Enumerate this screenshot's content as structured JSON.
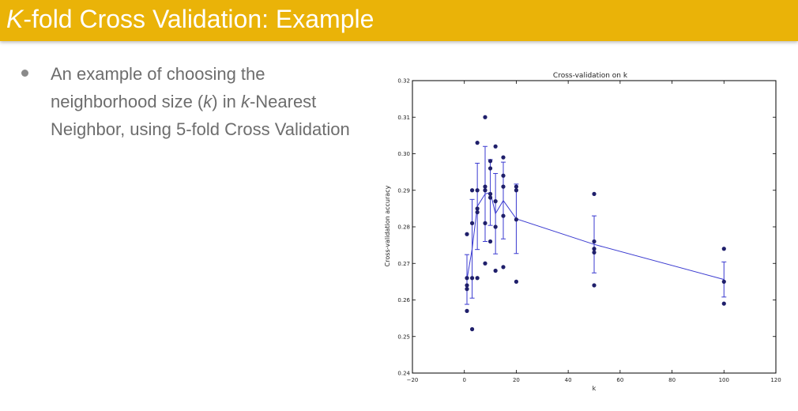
{
  "slide": {
    "title_k": "K",
    "title_rest": "-fold Cross Validation: Example",
    "bullet": {
      "p1": "An example of choosing the neighborhood size (",
      "p2": "k",
      "p3": ") in ",
      "p4": "k",
      "p5": "-Nearest Neighbor, using 5-fold Cross Validation"
    }
  },
  "chart_data": {
    "type": "scatter",
    "title": "Cross-validation on k",
    "xlabel": "k",
    "ylabel": "Cross-validation accuracy",
    "xlim": [
      -20,
      120
    ],
    "ylim": [
      0.24,
      0.32
    ],
    "xticks": [
      "−20",
      "0",
      "20",
      "40",
      "60",
      "80",
      "100",
      "120"
    ],
    "yticks": [
      "0.24",
      "0.25",
      "0.26",
      "0.27",
      "0.28",
      "0.29",
      "0.30",
      "0.31",
      "0.32"
    ],
    "grid": false,
    "colors": {
      "points": "#1f1f6b",
      "line": "#3a3ad0"
    },
    "points": [
      [
        1,
        0.257
      ],
      [
        1,
        0.263
      ],
      [
        1,
        0.264
      ],
      [
        1,
        0.266
      ],
      [
        1,
        0.278
      ],
      [
        3,
        0.252
      ],
      [
        3,
        0.266
      ],
      [
        3,
        0.281
      ],
      [
        3,
        0.29
      ],
      [
        5,
        0.266
      ],
      [
        5,
        0.284
      ],
      [
        5,
        0.285
      ],
      [
        5,
        0.29
      ],
      [
        5,
        0.303
      ],
      [
        8,
        0.27
      ],
      [
        8,
        0.281
      ],
      [
        8,
        0.29
      ],
      [
        8,
        0.291
      ],
      [
        8,
        0.31
      ],
      [
        10,
        0.276
      ],
      [
        10,
        0.288
      ],
      [
        10,
        0.289
      ],
      [
        10,
        0.296
      ],
      [
        10,
        0.298
      ],
      [
        12,
        0.268
      ],
      [
        12,
        0.28
      ],
      [
        12,
        0.287
      ],
      [
        12,
        0.302
      ],
      [
        15,
        0.269
      ],
      [
        15,
        0.283
      ],
      [
        15,
        0.291
      ],
      [
        15,
        0.294
      ],
      [
        15,
        0.299
      ],
      [
        20,
        0.265
      ],
      [
        20,
        0.282
      ],
      [
        20,
        0.29
      ],
      [
        20,
        0.291
      ],
      [
        50,
        0.264
      ],
      [
        50,
        0.273
      ],
      [
        50,
        0.274
      ],
      [
        50,
        0.276
      ],
      [
        50,
        0.289
      ],
      [
        100,
        0.259
      ],
      [
        100,
        0.265
      ],
      [
        100,
        0.274
      ]
    ],
    "mean_line": {
      "x": [
        1,
        3,
        5,
        8,
        10,
        12,
        15,
        20,
        50,
        100
      ],
      "y": [
        0.2656,
        0.274,
        0.2856,
        0.289,
        0.2894,
        0.2836,
        0.2872,
        0.2822,
        0.2752,
        0.2656
      ]
    },
    "error_bars": {
      "x": [
        1,
        3,
        5,
        8,
        10,
        12,
        15,
        20,
        50,
        100
      ],
      "mean": [
        0.2656,
        0.274,
        0.2856,
        0.289,
        0.2894,
        0.2836,
        0.2872,
        0.2822,
        0.2752,
        0.2656
      ],
      "std": [
        0.0068,
        0.0135,
        0.0118,
        0.013,
        0.009,
        0.011,
        0.0105,
        0.0095,
        0.0078,
        0.0048
      ]
    }
  }
}
